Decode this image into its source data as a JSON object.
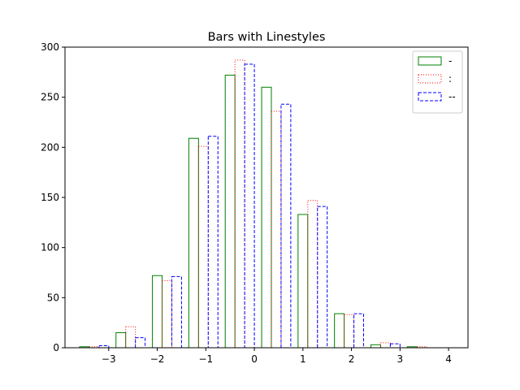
{
  "chart_data": {
    "type": "bar",
    "title": "Bars with Linestyles",
    "xlabel": "",
    "ylabel": "",
    "xlim": [
      -3.9,
      4.4
    ],
    "ylim": [
      0,
      300
    ],
    "xticks": [
      "−3",
      "−2",
      "−1",
      "0",
      "1",
      "2",
      "3",
      "4"
    ],
    "xtick_values": [
      -3,
      -2,
      -1,
      0,
      1,
      2,
      3,
      4
    ],
    "yticks": [
      "0",
      "50",
      "100",
      "150",
      "200",
      "250",
      "300"
    ],
    "ytick_values": [
      0,
      50,
      100,
      150,
      200,
      250,
      300
    ],
    "grid": false,
    "legend_position": "top-right",
    "bar_width": 0.2,
    "series": [
      {
        "name": "-",
        "color": "#008000",
        "linestyle": "solid",
        "x": [
          -3.6,
          -2.85,
          -2.1,
          -1.35,
          -0.6,
          0.15,
          0.9,
          1.65,
          2.4,
          3.15
        ],
        "values": [
          1,
          15,
          72,
          209,
          272,
          260,
          133,
          34,
          3,
          1
        ]
      },
      {
        "name": ":",
        "color": "#ff0000",
        "linestyle": "dotted",
        "x": [
          -3.4,
          -2.65,
          -1.9,
          -1.15,
          -0.4,
          0.35,
          1.1,
          1.85,
          2.6,
          3.35
        ],
        "values": [
          1,
          21,
          67,
          201,
          287,
          236,
          147,
          33,
          5,
          1
        ]
      },
      {
        "name": "--",
        "color": "#0000ff",
        "linestyle": "dashed",
        "x": [
          -3.2,
          -2.45,
          -1.7,
          -0.95,
          -0.2,
          0.55,
          1.3,
          2.05,
          2.8,
          3.55
        ],
        "values": [
          2,
          10,
          71,
          211,
          283,
          243,
          141,
          34,
          4,
          0
        ]
      }
    ]
  }
}
